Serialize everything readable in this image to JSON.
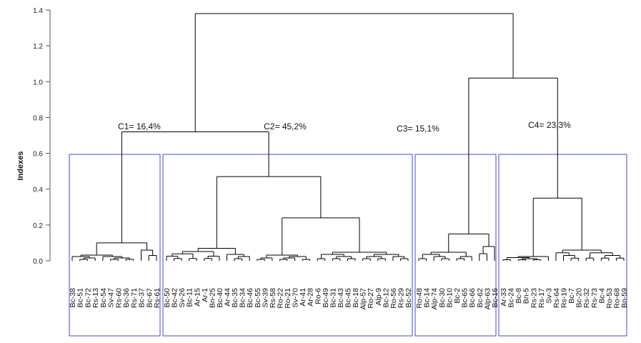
{
  "chart_data": {
    "type": "dendrogram",
    "ylabel": "Indexes",
    "ylim": [
      0,
      1.4
    ],
    "yticks": [
      "0.0",
      "0.2",
      "0.4",
      "0.6",
      "0.8",
      "1.0",
      "1.2",
      "1.4"
    ],
    "box_color": "#4a4ad0",
    "line_color": "#000000",
    "clusters": [
      {
        "name": "C1",
        "label": "C1= 16,4%",
        "merge_height": 0.72,
        "leaves": [
          "Bc-38",
          "Bc-51",
          "Bc-72",
          "Rs-13",
          "Bc-54",
          "Sv-47",
          "Rs-60",
          "Bc-36",
          "Rs-71",
          "Bc-37",
          "Bc-67",
          "Rs-61"
        ]
      },
      {
        "name": "C2",
        "label": "C2= 45,2%",
        "merge_height": 0.72,
        "leaves": [
          "Bc-50",
          "Bc-42",
          "Sv-26",
          "Bc-11",
          "Ar-15",
          "Ar-1",
          "Bn-25",
          "Bc-40",
          "Ar-44",
          "Bc-35",
          "Bc-34",
          "Bc-46",
          "Bc-55",
          "Sv-39",
          "Rs-58",
          "Ro-22",
          "Ro-21",
          "Sv-70",
          "Ar-41",
          "Ar-28",
          "Ro-6",
          "Bc-49",
          "Bc-31",
          "Bc-43",
          "Bc-45",
          "Bc-18",
          "Alp-57",
          "Ro-27",
          "Alp-9",
          "Bc-12",
          "Ro-56",
          "Rs-29",
          "Bc-52"
        ]
      },
      {
        "name": "C3",
        "label": "C3= 15,1%",
        "merge_height": 1.02,
        "leaves": [
          "Ro-48",
          "Bc-14",
          "Alp-74",
          "Bc-30",
          "Bc-10",
          "Bc-2",
          "Bc-65",
          "Bc-66",
          "Bc-62",
          "Alp-63",
          "Bc-16"
        ]
      },
      {
        "name": "C4",
        "label": "C4= 23,3%",
        "merge_height": 1.02,
        "leaves": [
          "Ar-33",
          "Bc-24",
          "Bc-8",
          "Bn-5",
          "Rs-23",
          "Rs-17",
          "Sv-3",
          "Rs-64",
          "Rs-19",
          "Bc-7",
          "Bc-20",
          "Rs-32",
          "Rs-73",
          "Bc-4",
          "Ro-53",
          "Ro-68",
          "Bn-59"
        ]
      }
    ],
    "root_height": 1.38,
    "tree": [
      [
        [
          [
            "Bc-38",
            [
              [
                "Bc-51",
                "Bc-72"
              ],
              "Rs-13"
            ]
          ],
          [
            "Bc-54",
            [
              [
                "Sv-47",
                "Rs-60"
              ],
              [
                "Bc-36",
                "Rs-71"
              ]
            ]
          ]
        ],
        [
          "Bc-37",
          [
            "Bc-67",
            "Rs-61"
          ]
        ]
      ],
      [
        [
          [
            [
              "Bc-50",
              [
                "Bc-42",
                "Sv-26"
              ]
            ],
            [
              "Bc-11",
              "Ar-15"
            ]
          ],
          [
            [
              "Ar-1",
              "Bn-25"
            ],
            "Bc-40"
          ]
        ],
        [
          "Ar-44",
          [
            [
              "Bc-35",
              "Bc-34"
            ],
            "Bc-46"
          ]
        ]
      ],
      [
        [
          [
            "Bc-55",
            "Sv-39"
          ],
          "Rs-58"
        ],
        [
          [
            [
              "Ro-22",
              "Ro-21"
            ],
            "Sv-70"
          ],
          [
            "Ar-41",
            "Ar-28"
          ]
        ]
      ],
      [
        [
          [
            "Ro-6",
            "Bc-49"
          ],
          [
            [
              "Bc-31",
              "Bc-43"
            ],
            [
              "Bc-45",
              "Bc-18"
            ]
          ]
        ],
        [
          [
            [
              "Alp-57",
              "Ro-27"
            ],
            [
              "Alp-9",
              "Bc-12"
            ]
          ],
          [
            "Ro-56",
            [
              "Rs-29",
              "Bc-52"
            ]
          ]
        ]
      ],
      [
        [
          [
            "Ro-48",
            "Bc-14"
          ],
          [
            "Alp-74",
            [
              "Bc-30",
              "Bc-10"
            ]
          ]
        ],
        [
          [
            "Bc-2",
            "Bc-65"
          ],
          "Bc-66"
        ]
      ],
      [
        [
          "Bc-62",
          "Alp-63"
        ],
        "Bc-16"
      ],
      [
        [
          [
            "Ar-33",
            "Bc-24"
          ],
          [
            [
              "Bc-8",
              "Bn-5"
            ],
            [
              "Rs-23",
              "Rs-17"
            ]
          ]
        ],
        "Sv-3"
      ],
      [
        [
          "Rs-64",
          [
            "Rs-19",
            [
              "Bc-7",
              "Bc-20"
            ]
          ]
        ],
        [
          [
            "Rs-32",
            "Rs-73"
          ],
          [
            [
              "Bc-4",
              "Ro-53"
            ],
            [
              "Ro-68",
              "Bn-59"
            ]
          ]
        ]
      ]
    ],
    "merge_heights": [
      [
        [
          [
            [
              "0.0",
              [
                [
                  "0.0",
                  "0.0"
                ],
                "0.0"
              ]
            ],
            [
              "0.0",
              [
                [
                  "0.0",
                  "0.0"
                ],
                [
                  "0.0",
                  "0.0"
                ]
              ]
            ]
          ]
        ]
      ],
      [
        0.1,
        0.03,
        0.02,
        0.0,
        0.01,
        0.0
      ]
    ]
  }
}
